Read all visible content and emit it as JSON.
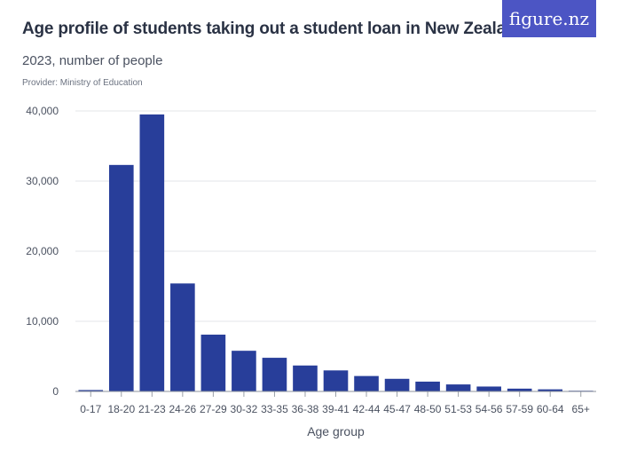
{
  "header": {
    "title": "Age profile of students taking out a student loan in New Zealand",
    "subtitle": "2023, number of people",
    "provider": "Provider: Ministry of Education",
    "logo_text": "figure.nz"
  },
  "colors": {
    "bar": "#283e9a",
    "logo_bg": "#4c55c4",
    "grid": "#e3e6ea"
  },
  "chart_data": {
    "type": "bar",
    "title": "Age profile of students taking out a student loan in New Zealand",
    "subtitle": "2023, number of people",
    "xlabel": "Age group",
    "ylabel": "",
    "categories": [
      "0-17",
      "18-20",
      "21-23",
      "24-26",
      "27-29",
      "30-32",
      "33-35",
      "36-38",
      "39-41",
      "42-44",
      "45-47",
      "48-50",
      "51-53",
      "54-56",
      "57-59",
      "60-64",
      "65+"
    ],
    "values": [
      200,
      32300,
      39500,
      15400,
      8100,
      5800,
      4800,
      3700,
      3000,
      2200,
      1800,
      1400,
      1000,
      700,
      400,
      300,
      100
    ],
    "ylim": [
      0,
      40000
    ],
    "yticks": [
      0,
      10000,
      20000,
      30000,
      40000
    ],
    "ytick_labels": [
      "0",
      "10,000",
      "20,000",
      "30,000",
      "40,000"
    ],
    "grid": true,
    "legend": "none"
  }
}
